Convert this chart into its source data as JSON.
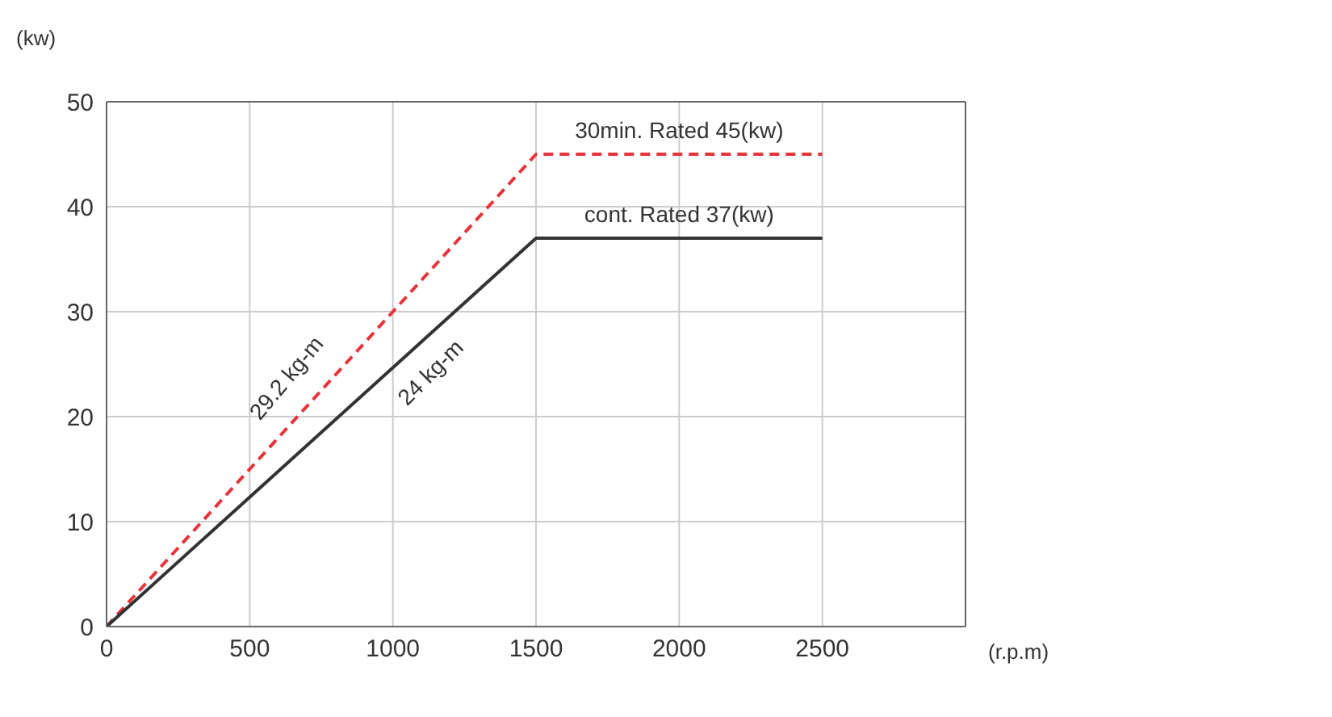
{
  "chart_data": {
    "type": "line",
    "xlabel": "(r.p.m)",
    "ylabel": "(kw)",
    "series": [
      {
        "color": "#e8333a",
        "line_style": "dashed",
        "x": [
          0,
          1500,
          2500
        ],
        "values": [
          0,
          45,
          45
        ]
      },
      {
        "color": "#333333",
        "line_style": "solid",
        "x": [
          0,
          1500,
          2500
        ],
        "values": [
          0,
          37,
          37
        ]
      }
    ],
    "xlim": [
      0,
      3000
    ],
    "xticks": [
      0,
      500,
      1000,
      1500,
      2000,
      2500
    ],
    "ylim": [
      0,
      50
    ],
    "yticks": [
      0,
      10,
      20,
      30,
      40,
      50
    ],
    "grid": true,
    "marker": "none",
    "legend": false,
    "annotations": [
      {
        "text": "30min. Rated 45(kw)",
        "x": 2000,
        "y": 45
      },
      {
        "text": "cont. Rated 37(kw)",
        "x": 2000,
        "y": 37
      },
      "29.2 kg-m",
      "24 kg-m"
    ]
  }
}
